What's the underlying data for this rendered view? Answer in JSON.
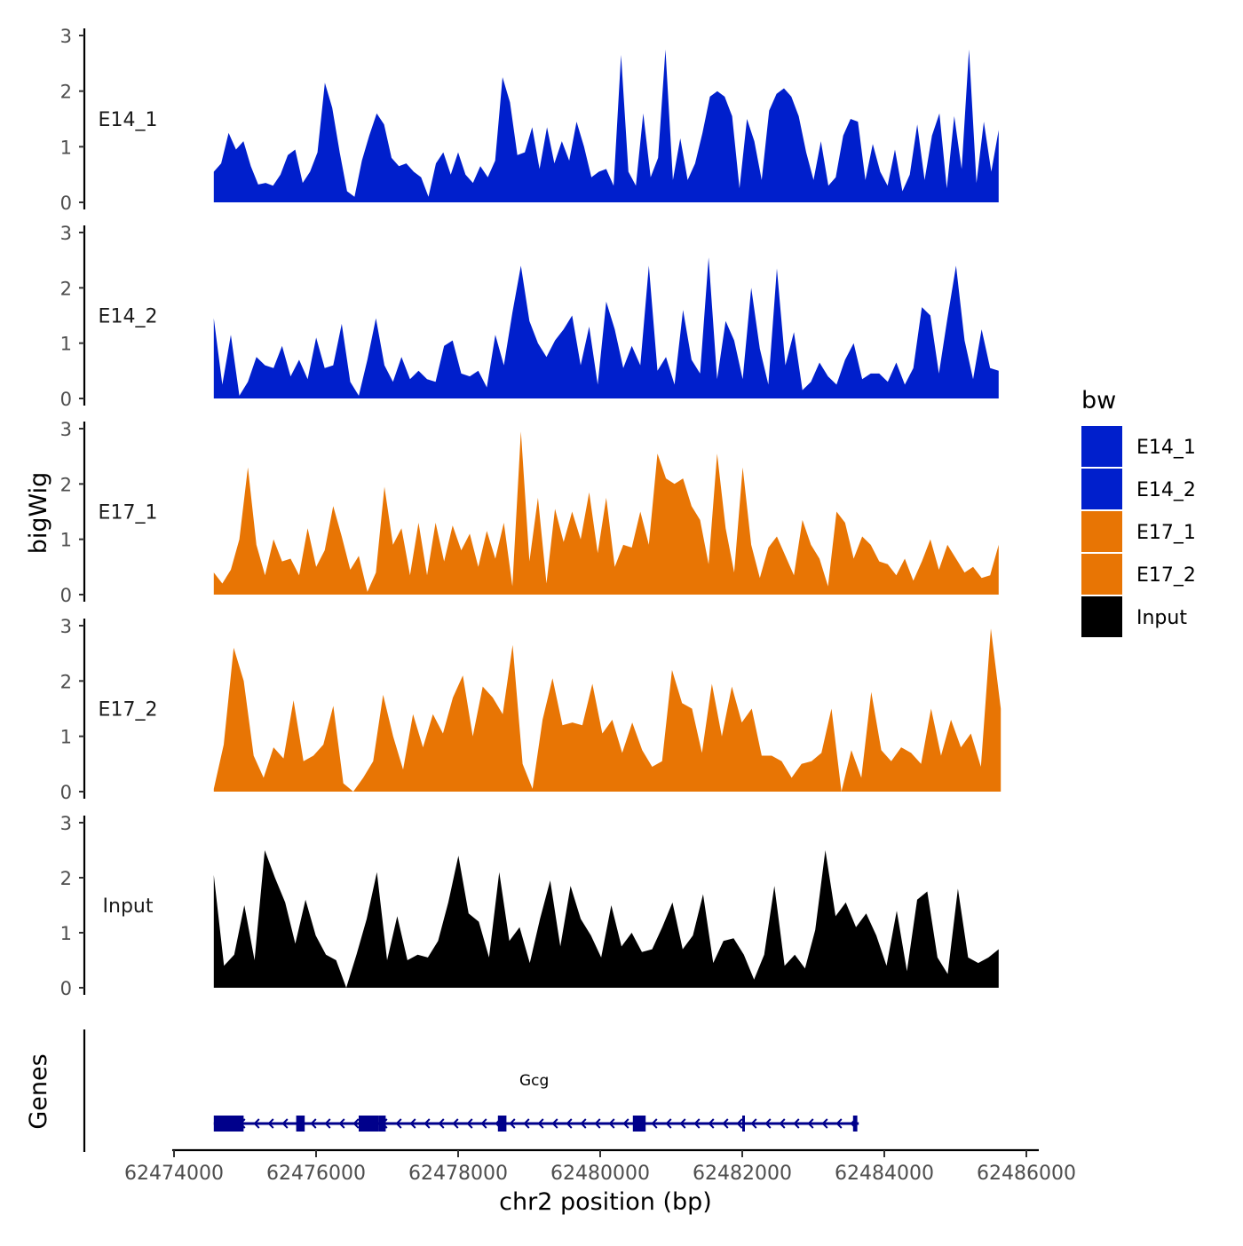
{
  "chart_data": {
    "type": "area",
    "ylabel": "bigWig",
    "xlabel": "chr2 position (bp)",
    "x_domain": [
      62474000,
      62486000
    ],
    "x_ticks": [
      62474000,
      62476000,
      62478000,
      62480000,
      62482000,
      62484000,
      62486000
    ],
    "x_tick_labels": [
      "62474000",
      "62476000",
      "62478000",
      "62480000",
      "62482000",
      "62484000",
      "62486000"
    ],
    "ylim": [
      0,
      3
    ],
    "y_ticks": [
      0,
      1,
      2,
      3
    ],
    "y_tick_labels": [
      "0",
      "1",
      "2",
      "3"
    ],
    "legend": {
      "title": "bw",
      "position": "right",
      "entries": [
        {
          "label": "E14_1",
          "color": "#001fcc"
        },
        {
          "label": "E14_2",
          "color": "#001fcc"
        },
        {
          "label": "E17_1",
          "color": "#e87504"
        },
        {
          "label": "E17_2",
          "color": "#e87504"
        },
        {
          "label": "Input",
          "color": "#000000"
        }
      ]
    },
    "series": [
      {
        "name": "E14_1",
        "color": "#001fcc",
        "x_start": 62474560,
        "x_end": 62485610,
        "values": [
          0.55,
          0.7,
          1.25,
          0.95,
          1.1,
          0.65,
          0.32,
          0.35,
          0.3,
          0.5,
          0.85,
          0.95,
          0.35,
          0.55,
          0.9,
          2.15,
          1.7,
          0.9,
          0.2,
          0.1,
          0.75,
          1.2,
          1.6,
          1.4,
          0.8,
          0.65,
          0.7,
          0.55,
          0.45,
          0.1,
          0.7,
          0.9,
          0.5,
          0.9,
          0.5,
          0.35,
          0.65,
          0.45,
          0.75,
          2.25,
          1.8,
          0.85,
          0.9,
          1.35,
          0.6,
          1.35,
          0.7,
          1.1,
          0.75,
          1.45,
          1.0,
          0.45,
          0.55,
          0.6,
          0.3,
          2.65,
          0.55,
          0.3,
          1.6,
          0.45,
          0.8,
          2.75,
          0.4,
          1.15,
          0.4,
          0.7,
          1.25,
          1.9,
          2.0,
          1.9,
          1.55,
          0.25,
          1.5,
          1.1,
          0.4,
          1.65,
          1.95,
          2.05,
          1.9,
          1.55,
          0.9,
          0.4,
          1.1,
          0.3,
          0.45,
          1.2,
          1.5,
          1.45,
          0.4,
          1.05,
          0.55,
          0.3,
          0.95,
          0.2,
          0.5,
          1.4,
          0.4,
          1.2,
          1.6,
          0.25,
          1.55,
          0.6,
          2.75,
          0.35,
          1.45,
          0.55,
          1.3
        ]
      },
      {
        "name": "E14_2",
        "color": "#001fcc",
        "x_start": 62474560,
        "x_end": 62485610,
        "values": [
          1.45,
          0.25,
          1.15,
          0.05,
          0.3,
          0.75,
          0.6,
          0.55,
          0.95,
          0.4,
          0.7,
          0.35,
          1.1,
          0.55,
          0.6,
          1.35,
          0.3,
          0.05,
          0.7,
          1.45,
          0.6,
          0.3,
          0.75,
          0.35,
          0.5,
          0.35,
          0.3,
          0.95,
          1.05,
          0.45,
          0.4,
          0.5,
          0.2,
          1.15,
          0.6,
          1.55,
          2.4,
          1.4,
          1.0,
          0.75,
          1.05,
          1.25,
          1.5,
          0.6,
          1.3,
          0.25,
          1.75,
          1.25,
          0.55,
          0.95,
          0.6,
          2.4,
          0.5,
          0.75,
          0.25,
          1.6,
          0.7,
          0.45,
          2.55,
          0.35,
          1.4,
          1.05,
          0.35,
          2.0,
          0.9,
          0.25,
          2.35,
          0.6,
          1.2,
          0.15,
          0.3,
          0.65,
          0.4,
          0.25,
          0.7,
          1.0,
          0.35,
          0.45,
          0.45,
          0.3,
          0.65,
          0.25,
          0.55,
          1.65,
          1.5,
          0.45,
          1.45,
          2.4,
          1.05,
          0.35,
          1.25,
          0.55,
          0.5
        ]
      },
      {
        "name": "E17_1",
        "color": "#e87504",
        "x_start": 62474560,
        "x_end": 62485610,
        "values": [
          0.4,
          0.2,
          0.45,
          1.0,
          2.3,
          0.9,
          0.35,
          1.0,
          0.6,
          0.65,
          0.35,
          1.2,
          0.5,
          0.8,
          1.6,
          1.05,
          0.45,
          0.7,
          0.05,
          0.4,
          1.95,
          0.9,
          1.2,
          0.35,
          1.3,
          0.35,
          1.3,
          0.6,
          1.25,
          0.8,
          1.1,
          0.5,
          1.15,
          0.65,
          1.3,
          0.15,
          2.95,
          0.6,
          1.75,
          0.2,
          1.55,
          0.95,
          1.5,
          1.0,
          1.85,
          0.75,
          1.75,
          0.5,
          0.9,
          0.85,
          1.5,
          0.9,
          2.55,
          2.1,
          2.0,
          2.1,
          1.6,
          1.35,
          0.55,
          2.55,
          1.2,
          0.4,
          2.3,
          0.9,
          0.3,
          0.85,
          1.05,
          0.7,
          0.35,
          1.35,
          0.9,
          0.65,
          0.15,
          1.5,
          1.3,
          0.65,
          1.05,
          0.9,
          0.6,
          0.55,
          0.35,
          0.65,
          0.25,
          0.6,
          1.0,
          0.45,
          0.9,
          0.65,
          0.4,
          0.5,
          0.3,
          0.35,
          0.9
        ]
      },
      {
        "name": "E17_2",
        "color": "#e87504",
        "x_start": 62474560,
        "x_end": 62485640,
        "values": [
          0.05,
          0.85,
          2.6,
          2.0,
          0.65,
          0.25,
          0.8,
          0.6,
          1.65,
          0.55,
          0.65,
          0.85,
          1.55,
          0.15,
          0.0,
          0.25,
          0.55,
          1.75,
          1.0,
          0.4,
          1.4,
          0.8,
          1.4,
          1.05,
          1.7,
          2.1,
          1.0,
          1.9,
          1.7,
          1.4,
          2.65,
          0.5,
          0.05,
          1.3,
          2.05,
          1.2,
          1.25,
          1.2,
          1.95,
          1.05,
          1.3,
          0.7,
          1.25,
          0.75,
          0.45,
          0.55,
          2.2,
          1.6,
          1.5,
          0.7,
          1.95,
          1.0,
          1.9,
          1.25,
          1.5,
          0.65,
          0.65,
          0.55,
          0.25,
          0.5,
          0.55,
          0.7,
          1.5,
          0.0,
          0.75,
          0.25,
          1.8,
          0.75,
          0.55,
          0.8,
          0.7,
          0.5,
          1.5,
          0.65,
          1.3,
          0.8,
          1.05,
          0.45,
          2.95,
          1.5
        ]
      },
      {
        "name": "Input",
        "color": "#000000",
        "x_start": 62474560,
        "x_end": 62485610,
        "values": [
          2.05,
          0.4,
          0.6,
          1.5,
          0.5,
          2.5,
          2.0,
          1.55,
          0.8,
          1.6,
          0.95,
          0.6,
          0.5,
          0.0,
          0.6,
          1.25,
          2.1,
          0.5,
          1.3,
          0.5,
          0.6,
          0.55,
          0.85,
          1.55,
          2.4,
          1.35,
          1.2,
          0.55,
          2.1,
          0.85,
          1.1,
          0.45,
          1.25,
          1.95,
          0.75,
          1.85,
          1.25,
          0.95,
          0.55,
          1.5,
          0.75,
          1.0,
          0.65,
          0.7,
          1.1,
          1.55,
          0.7,
          0.95,
          1.7,
          0.45,
          0.85,
          0.9,
          0.6,
          0.15,
          0.6,
          1.85,
          0.4,
          0.6,
          0.35,
          1.05,
          2.5,
          1.3,
          1.55,
          1.1,
          1.35,
          0.95,
          0.4,
          1.4,
          0.3,
          1.6,
          1.75,
          0.55,
          0.25,
          1.8,
          0.55,
          0.45,
          0.55,
          0.7
        ]
      }
    ],
    "genes": {
      "track_label": "Genes",
      "gene_name": "Gcg",
      "strand": "-",
      "span": [
        62474560,
        62483640
      ],
      "exons": [
        [
          62474560,
          62474980
        ],
        [
          62475720,
          62475840
        ],
        [
          62476600,
          62476880
        ],
        [
          62476880,
          62476980
        ],
        [
          62478560,
          62478680
        ],
        [
          62480460,
          62480640
        ],
        [
          62482000,
          62482020
        ],
        [
          62483560,
          62483620
        ]
      ]
    }
  }
}
